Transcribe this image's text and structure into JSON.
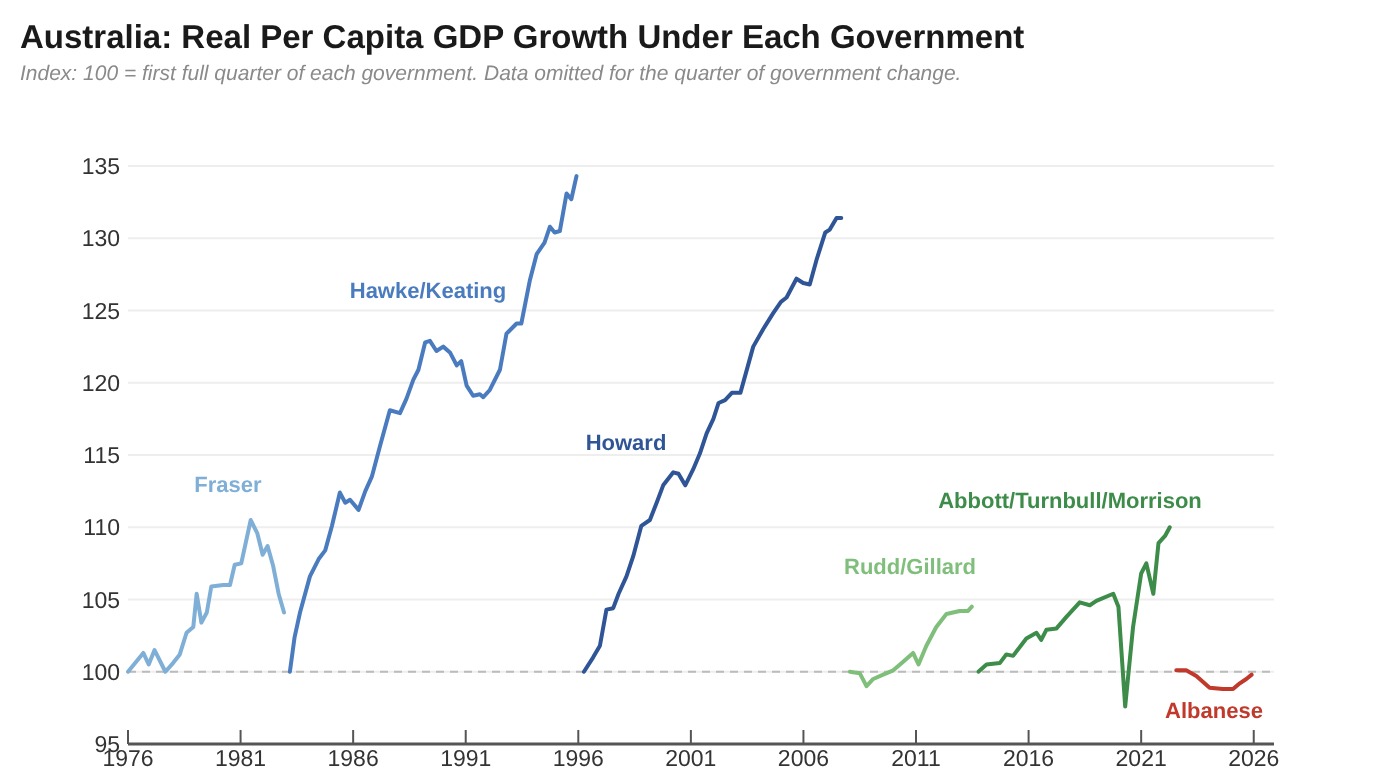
{
  "chart_data": {
    "type": "line",
    "title": "Australia: Real Per Capita GDP Growth Under Each Government",
    "subtitle": "Index: 100 = first full quarter of each government. Data omitted for the quarter of government change.",
    "xlim": [
      1976,
      2026.9
    ],
    "xticks": [
      1976,
      1981,
      1986,
      1991,
      1996,
      2001,
      2006,
      2011,
      2016,
      2021,
      2026
    ],
    "ylim": [
      95,
      135
    ],
    "yticks": [
      95,
      100,
      105,
      110,
      115,
      120,
      125,
      130,
      135
    ],
    "grid": "y",
    "legend": false,
    "line_style": "solid",
    "marker": "none",
    "ref_lines": [
      {
        "axis": "y",
        "value": 100,
        "label": null,
        "color": "#bbbbbb",
        "line_style": "dashed"
      }
    ],
    "series": [
      {
        "name": "Fraser",
        "color": "#7fafd6",
        "x": [
          1976.0,
          1976.68,
          1976.92,
          1977.18,
          1977.66,
          1978.0,
          1978.3,
          1978.6,
          1978.9,
          1979.05,
          1979.26,
          1979.5,
          1979.7,
          1980.23,
          1980.53,
          1980.74,
          1981.03,
          1981.45,
          1981.74,
          1981.98,
          1982.2,
          1982.45,
          1982.69,
          1982.93
        ],
        "values": [
          100,
          101.3,
          100.5,
          101.5,
          100.0,
          100.6,
          101.2,
          102.7,
          103.1,
          105.4,
          103.4,
          104.1,
          105.9,
          106.0,
          106.0,
          107.4,
          107.5,
          110.5,
          109.6,
          108.1,
          108.7,
          107.3,
          105.4,
          104.1
        ]
      },
      {
        "name": "Hawke/Keating",
        "color": "#4a7bbf",
        "x": [
          1983.19,
          1983.4,
          1983.64,
          1984.08,
          1984.47,
          1984.76,
          1985.06,
          1985.41,
          1985.65,
          1985.86,
          1986.24,
          1986.54,
          1986.83,
          1987.19,
          1987.63,
          1988.08,
          1988.37,
          1988.67,
          1988.9,
          1989.2,
          1989.41,
          1989.7,
          1990.0,
          1990.3,
          1990.6,
          1990.8,
          1991.04,
          1991.33,
          1991.63,
          1991.78,
          1992.07,
          1992.52,
          1992.81,
          1993.26,
          1993.47,
          1993.85,
          1994.15,
          1994.5,
          1994.74,
          1994.95,
          1995.18,
          1995.48,
          1995.69,
          1995.92
        ],
        "values": [
          100,
          102.4,
          104.1,
          106.6,
          107.8,
          108.4,
          110.1,
          112.4,
          111.7,
          111.9,
          111.2,
          112.5,
          113.5,
          115.6,
          118.1,
          117.9,
          118.9,
          120.2,
          120.9,
          122.8,
          122.9,
          122.2,
          122.5,
          122.1,
          121.2,
          121.5,
          119.8,
          119.1,
          119.2,
          119.0,
          119.5,
          120.9,
          123.4,
          124.1,
          124.1,
          127.1,
          128.9,
          129.7,
          130.8,
          130.4,
          130.5,
          133.1,
          132.7,
          134.3
        ]
      },
      {
        "name": "Howard",
        "color": "#2f5597",
        "x": [
          1996.25,
          1996.66,
          1996.96,
          1997.25,
          1997.55,
          1997.79,
          1998.14,
          1998.44,
          1998.8,
          1999.18,
          1999.48,
          1999.77,
          2000.22,
          2000.45,
          2000.75,
          2001.1,
          2001.4,
          2001.7,
          2002.0,
          2002.23,
          2002.52,
          2002.82,
          2003.2,
          2003.77,
          2004.21,
          2004.65,
          2005.0,
          2005.25,
          2005.69,
          2005.99,
          2006.28,
          2006.58,
          2006.97,
          2007.17,
          2007.47,
          2007.68
        ],
        "values": [
          100,
          101.0,
          101.8,
          104.3,
          104.4,
          105.4,
          106.6,
          108.0,
          110.1,
          110.5,
          111.7,
          112.9,
          113.8,
          113.7,
          112.9,
          114.0,
          115.1,
          116.5,
          117.5,
          118.6,
          118.8,
          119.3,
          119.3,
          122.5,
          123.7,
          124.8,
          125.6,
          125.9,
          127.2,
          126.9,
          126.8,
          128.5,
          130.4,
          130.6,
          131.4,
          131.4
        ]
      },
      {
        "name": "Rudd/Gillard",
        "color": "#7fbf7b",
        "x": [
          2008.06,
          2008.5,
          2008.8,
          2009.1,
          2009.54,
          2009.99,
          2010.43,
          2010.87,
          2011.11,
          2011.46,
          2011.9,
          2012.35,
          2012.94,
          2013.3,
          2013.48
        ],
        "values": [
          100.0,
          99.9,
          99.0,
          99.5,
          99.8,
          100.1,
          100.7,
          101.3,
          100.5,
          101.8,
          103.1,
          104.0,
          104.2,
          104.2,
          104.5
        ]
      },
      {
        "name": "Abbott/Turnbull/Morrison",
        "color": "#3d8c4a",
        "x": [
          2013.77,
          2014.13,
          2014.72,
          2015.01,
          2015.31,
          2015.9,
          2016.35,
          2016.56,
          2016.79,
          2017.24,
          2017.68,
          2018.27,
          2018.72,
          2019.01,
          2019.76,
          2019.99,
          2020.29,
          2020.64,
          2021.0,
          2021.23,
          2021.54,
          2021.77,
          2022.06,
          2022.27
        ],
        "values": [
          100.0,
          100.5,
          100.6,
          101.2,
          101.1,
          102.3,
          102.7,
          102.2,
          102.9,
          103.0,
          103.8,
          104.8,
          104.6,
          104.9,
          105.4,
          104.5,
          97.6,
          103.1,
          106.8,
          107.5,
          105.4,
          108.9,
          109.4,
          110.0
        ]
      },
      {
        "name": "Albanese",
        "color": "#c0392b",
        "x": [
          2022.56,
          2023.0,
          2023.45,
          2024.04,
          2024.63,
          2025.08,
          2025.38,
          2025.67,
          2025.91
        ],
        "values": [
          100.1,
          100.1,
          99.7,
          98.9,
          98.8,
          98.8,
          99.2,
          99.5,
          99.8
        ]
      }
    ]
  }
}
